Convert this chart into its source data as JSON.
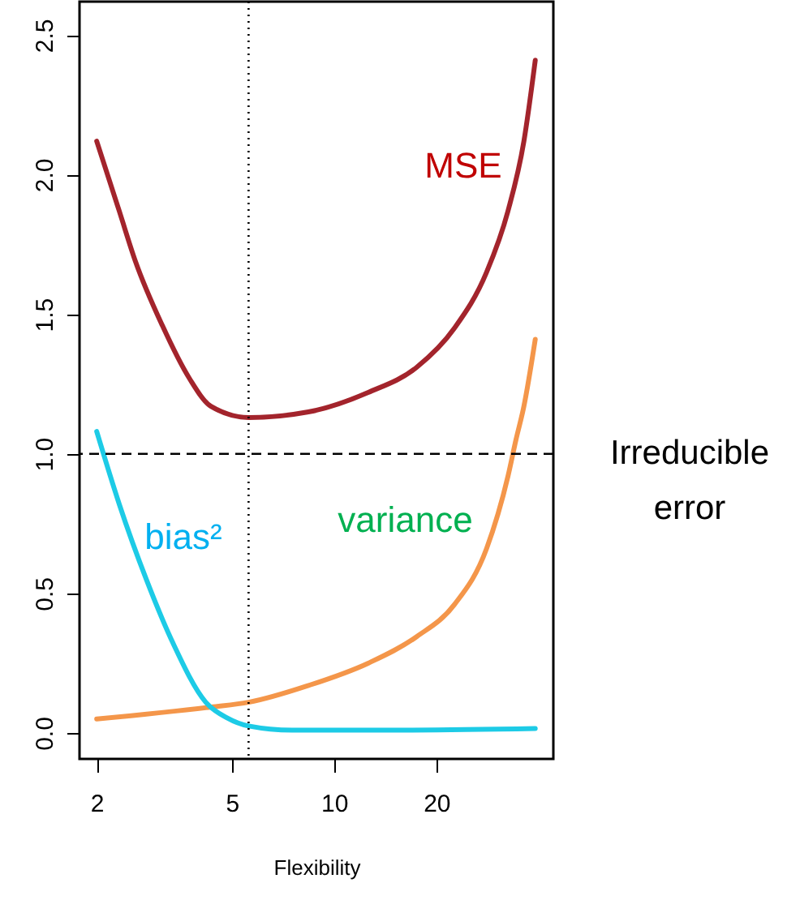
{
  "chart_data": {
    "type": "line",
    "xlabel": "Flexibility",
    "log": "x",
    "xlim": [
      1.78,
      44.2
    ],
    "ylim": [
      -0.093,
      2.62
    ],
    "xticks": [
      2,
      5,
      10,
      20
    ],
    "yticks": [
      {
        "value": 0,
        "label": "0.0"
      },
      {
        "value": 0.5,
        "label": "0.5"
      },
      {
        "value": 1,
        "label": "1.0"
      },
      {
        "value": 1.5,
        "label": "1.5"
      },
      {
        "value": 2,
        "label": "2.0"
      },
      {
        "value": 2.5,
        "label": "2.5"
      }
    ],
    "grid": false,
    "legend": false,
    "line_style": "solid",
    "marker": "none",
    "series": [
      {
        "name": "MSE",
        "color": "#a3242c",
        "x": [
          2,
          2.33,
          2.6,
          3.12,
          3.75,
          4.34,
          5.6,
          8.4,
          12.6,
          17.5,
          22.6,
          28.1,
          32.5,
          36.2,
          39.1
        ],
        "values": [
          2.12,
          1.87,
          1.69,
          1.46,
          1.27,
          1.17,
          1.13,
          1.15,
          1.22,
          1.31,
          1.45,
          1.65,
          1.87,
          2.12,
          2.41
        ]
      },
      {
        "name": "variance",
        "color": "#f4964a",
        "x": [
          2,
          4.34,
          5.6,
          8.4,
          12.6,
          17.5,
          22.6,
          28.1,
          32.5,
          34.3,
          36.2,
          39.1
        ],
        "values": [
          0.05,
          0.093,
          0.11,
          0.17,
          0.25,
          0.345,
          0.46,
          0.66,
          0.92,
          1.05,
          1.17,
          1.41
        ]
      },
      {
        "name": "bias²",
        "color": "#1dcbe6",
        "x": [
          2,
          2.33,
          2.8,
          3.36,
          4.19,
          4.84,
          5.6,
          7.52,
          14.5,
          39.1
        ],
        "values": [
          1.08,
          0.82,
          0.55,
          0.32,
          0.11,
          0.054,
          0.025,
          0.01,
          0.01,
          0.016
        ]
      }
    ],
    "ref_lines": [
      {
        "axis": "y",
        "value": 1,
        "label": "Irreducible error",
        "line_style": "dashed",
        "color": "#000000"
      },
      {
        "axis": "x",
        "value": 5.6,
        "line_style": "dotted",
        "color": "#000000"
      }
    ]
  }
}
